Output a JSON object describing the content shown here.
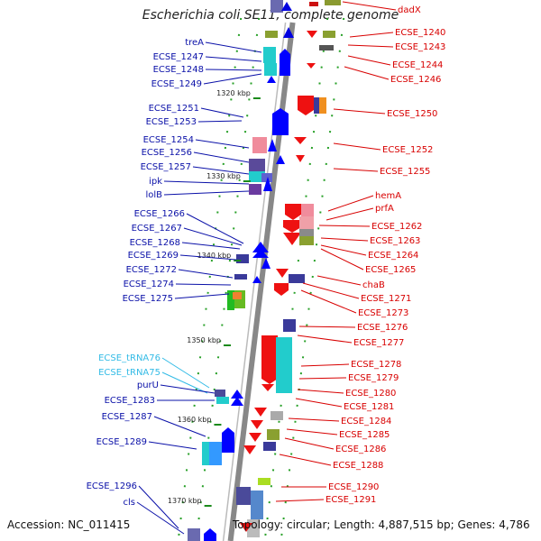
{
  "title": "Escherichia coli SE11, complete genome",
  "accession": "Accession: NC_011415",
  "topology": "Topology: circular; Length: 4,887,515 bp; Genes: 4,786",
  "colors": {
    "left_label": "#0a10a8",
    "right_label": "#d80000",
    "trna_label": "#33bbe6"
  },
  "ticks": [
    "1320 kbp",
    "1330 kbp",
    "1340 kbp",
    "1350 kbp",
    "1360 kbp",
    "1370 kbp"
  ],
  "left_genes": [
    "treA",
    "ECSE_1247",
    "ECSE_1248",
    "ECSE_1249",
    "ECSE_1251",
    "ECSE_1253",
    "ECSE_1254",
    "ECSE_1256",
    "ECSE_1257",
    "ipk",
    "lolB",
    "ECSE_1266",
    "ECSE_1267",
    "ECSE_1268",
    "ECSE_1269",
    "ECSE_1272",
    "ECSE_1274",
    "ECSE_1275",
    "ECSE_tRNA76",
    "ECSE_tRNA75",
    "purU",
    "ECSE_1283",
    "ECSE_1287",
    "ECSE_1289",
    "ECSE_1296",
    "cls"
  ],
  "right_genes": [
    "dadX",
    "ECSE_1240",
    "ECSE_1243",
    "ECSE_1244",
    "ECSE_1246",
    "ECSE_1250",
    "ECSE_1252",
    "ECSE_1255",
    "hemA",
    "prfA",
    "ECSE_1262",
    "ECSE_1263",
    "ECSE_1264",
    "ECSE_1265",
    "chaB",
    "ECSE_1271",
    "ECSE_1273",
    "ECSE_1276",
    "ECSE_1277",
    "ECSE_1278",
    "ECSE_1279",
    "ECSE_1280",
    "ECSE_1281",
    "ECSE_1284",
    "ECSE_1285",
    "ECSE_1286",
    "ECSE_1288",
    "ECSE_1290",
    "ECSE_1291"
  ]
}
